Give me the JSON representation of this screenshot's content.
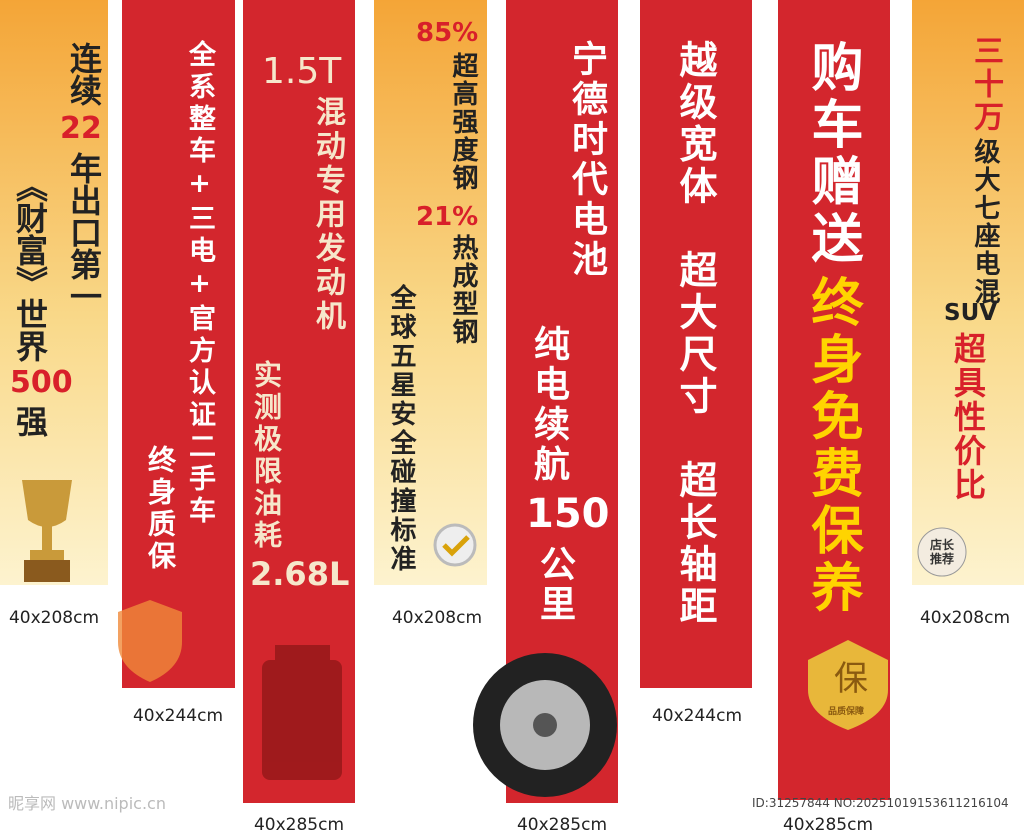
{
  "banners": [
    {
      "texts": [
        "连续",
        "22",
        "年出口第一",
        "《财富》世界",
        "500",
        "强"
      ],
      "size": "40x208cm"
    },
    {
      "texts": [
        "全系整车+三电+官方认证二手车",
        "终身质保"
      ],
      "size": "40x244cm"
    },
    {
      "texts": [
        "1.5T",
        "混动专用发动机",
        "实测极限油耗",
        "2.68L"
      ],
      "size": "40x285cm"
    },
    {
      "texts": [
        "85%",
        "超高强度钢",
        "21%",
        "热成型钢",
        "全球五星安全碰撞标准"
      ],
      "size": "40x208cm"
    },
    {
      "texts": [
        "宁德时代电池",
        "纯电续航",
        "150",
        "公里"
      ],
      "size": "40x285cm"
    },
    {
      "texts": [
        "越级宽体",
        "超大尺寸",
        "超长轴距"
      ],
      "size": "40x244cm"
    },
    {
      "texts": [
        "购车赠送",
        "终身免费保养"
      ],
      "badge": [
        "保",
        "品质保障"
      ],
      "size": "40x285cm"
    },
    {
      "texts": [
        "三十万",
        "级大七座电混",
        "SUV",
        "超具性价比"
      ],
      "badge": [
        "店长推荐"
      ],
      "size": "40x208cm"
    }
  ],
  "watermark": {
    "site": "昵享网 www.nipic.cn",
    "id": "ID:31257844 NO:20251019153611216104"
  }
}
